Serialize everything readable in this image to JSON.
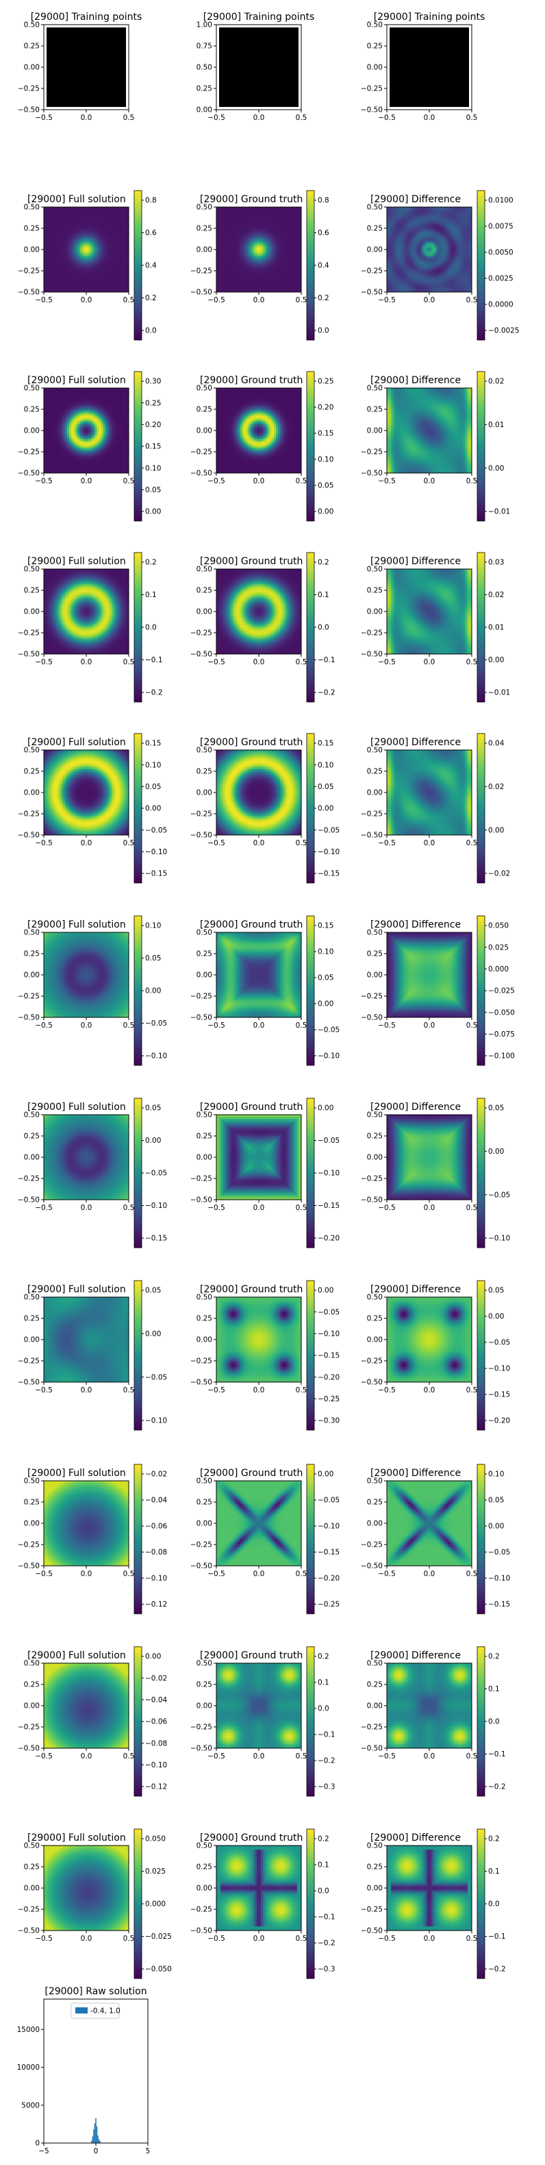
{
  "figure": {
    "panel_title_prefix": "[29000]",
    "tick_labels": {
      "x": [
        "−0.5",
        "0.0",
        "0.5"
      ],
      "y_img": [
        "0.50",
        "0.25",
        "0.00",
        "−0.25",
        "−0.50"
      ]
    }
  },
  "chart_data": {
    "type": "heatmap",
    "rows": [
      {
        "kind": "training",
        "panels": [
          {
            "title": "[29000] Training points",
            "yticks": [
              "0.50",
              "0.25",
              "0.00",
              "−0.25",
              "−0.50"
            ]
          },
          {
            "title": "[29000] Training points",
            "yticks": [
              "1.00",
              "0.75",
              "0.50",
              "0.25",
              "0.00"
            ]
          },
          {
            "title": "[29000] Training points",
            "yticks": [
              "0.50",
              "0.25",
              "0.00",
              "−0.25",
              "−0.50"
            ]
          }
        ]
      },
      {
        "panels": [
          {
            "title": "[29000] Full solution",
            "pattern": "spot",
            "cbar": [
              "0.8",
              "0.6",
              "0.4",
              "0.2",
              "0.0"
            ]
          },
          {
            "title": "[29000] Ground truth",
            "pattern": "spot",
            "cbar": [
              "0.8",
              "0.6",
              "0.4",
              "0.2",
              "0.0"
            ]
          },
          {
            "title": "[29000] Difference",
            "pattern": "rippleSmall",
            "cbar": [
              "0.0100",
              "0.0075",
              "0.0050",
              "0.0025",
              "0.0000",
              "−0.0025"
            ]
          }
        ]
      },
      {
        "panels": [
          {
            "title": "[29000] Full solution",
            "pattern": "ringSmall",
            "cbar": [
              "0.30",
              "0.25",
              "0.20",
              "0.15",
              "0.10",
              "0.05",
              "0.00"
            ]
          },
          {
            "title": "[29000] Ground truth",
            "pattern": "ringSmall",
            "cbar": [
              "0.25",
              "0.20",
              "0.15",
              "0.10",
              "0.05",
              "0.00"
            ]
          },
          {
            "title": "[29000] Difference",
            "pattern": "blob",
            "cbar": [
              "0.02",
              "0.01",
              "0.00",
              "−0.01"
            ]
          }
        ]
      },
      {
        "panels": [
          {
            "title": "[29000] Full solution",
            "pattern": "ringMid",
            "cbar": [
              "0.2",
              "0.1",
              "0.0",
              "−0.1",
              "−0.2"
            ]
          },
          {
            "title": "[29000] Ground truth",
            "pattern": "ringMid",
            "cbar": [
              "0.2",
              "0.1",
              "0.0",
              "−0.1",
              "−0.2"
            ]
          },
          {
            "title": "[29000] Difference",
            "pattern": "blob",
            "cbar": [
              "0.03",
              "0.02",
              "0.01",
              "0.00",
              "−0.01"
            ]
          }
        ]
      },
      {
        "panels": [
          {
            "title": "[29000] Full solution",
            "pattern": "ringLarge",
            "cbar": [
              "0.15",
              "0.10",
              "0.05",
              "0.00",
              "−0.05",
              "−0.10",
              "−0.15"
            ]
          },
          {
            "title": "[29000] Ground truth",
            "pattern": "ringLarge",
            "cbar": [
              "0.15",
              "0.10",
              "0.05",
              "0.00",
              "−0.05",
              "−0.10",
              "−0.15"
            ]
          },
          {
            "title": "[29000] Difference",
            "pattern": "blob",
            "cbar": [
              "0.04",
              "0.02",
              "0.00",
              "−0.02"
            ]
          }
        ]
      },
      {
        "panels": [
          {
            "title": "[29000] Full solution",
            "pattern": "ringEdge",
            "cbar": [
              "0.10",
              "0.05",
              "0.00",
              "−0.05",
              "−0.10"
            ]
          },
          {
            "title": "[29000] Ground truth",
            "pattern": "squareRing",
            "cbar": [
              "0.15",
              "0.10",
              "0.05",
              "0.00",
              "−0.05",
              "−0.10"
            ]
          },
          {
            "title": "[29000] Difference",
            "pattern": "star",
            "cbar": [
              "0.050",
              "0.025",
              "0.000",
              "−0.025",
              "−0.050",
              "−0.075",
              "−0.100"
            ]
          }
        ]
      },
      {
        "panels": [
          {
            "title": "[29000] Full solution",
            "pattern": "ringEdge",
            "cbar": [
              "0.05",
              "0.00",
              "−0.05",
              "−0.10",
              "−0.15"
            ]
          },
          {
            "title": "[29000] Ground truth",
            "pattern": "squareFrame",
            "cbar": [
              "0.00",
              "−0.05",
              "−0.10",
              "−0.15",
              "−0.20"
            ]
          },
          {
            "title": "[29000] Difference",
            "pattern": "star",
            "cbar": [
              "0.05",
              "0.00",
              "−0.05",
              "−0.10"
            ]
          }
        ]
      },
      {
        "panels": [
          {
            "title": "[29000] Full solution",
            "pattern": "diffuse",
            "cbar": [
              "0.05",
              "0.00",
              "−0.05",
              "−0.10"
            ]
          },
          {
            "title": "[29000] Ground truth",
            "pattern": "corners",
            "cbar": [
              "0.00",
              "−0.05",
              "−0.10",
              "−0.15",
              "−0.20",
              "−0.25",
              "−0.30"
            ]
          },
          {
            "title": "[29000] Difference",
            "pattern": "corners",
            "cbar": [
              "0.05",
              "0.00",
              "−0.05",
              "−0.10",
              "−0.15",
              "−0.20"
            ]
          }
        ]
      },
      {
        "panels": [
          {
            "title": "[29000] Full solution",
            "pattern": "dip",
            "cbar": [
              "−0.02",
              "−0.04",
              "−0.06",
              "−0.08",
              "−0.10",
              "−0.12"
            ]
          },
          {
            "title": "[29000] Ground truth",
            "pattern": "cross",
            "cbar": [
              "0.00",
              "−0.05",
              "−0.10",
              "−0.15",
              "−0.20",
              "−0.25"
            ]
          },
          {
            "title": "[29000] Difference",
            "pattern": "cross",
            "cbar": [
              "0.10",
              "0.05",
              "0.00",
              "−0.05",
              "−0.10",
              "−0.15"
            ]
          }
        ]
      },
      {
        "panels": [
          {
            "title": "[29000] Full solution",
            "pattern": "dip",
            "cbar": [
              "0.00",
              "−0.02",
              "−0.04",
              "−0.06",
              "−0.08",
              "−0.10",
              "−0.12"
            ]
          },
          {
            "title": "[29000] Ground truth",
            "pattern": "cornerSpots",
            "cbar": [
              "0.2",
              "0.1",
              "0.0",
              "−0.1",
              "−0.2",
              "−0.3"
            ]
          },
          {
            "title": "[29000] Difference",
            "pattern": "cornerSpots",
            "cbar": [
              "0.2",
              "0.1",
              "0.0",
              "−0.1",
              "−0.2"
            ]
          }
        ]
      },
      {
        "panels": [
          {
            "title": "[29000] Full solution",
            "pattern": "dip",
            "cbar": [
              "0.050",
              "0.025",
              "0.000",
              "−0.025",
              "−0.050"
            ]
          },
          {
            "title": "[29000] Ground truth",
            "pattern": "plus",
            "cbar": [
              "0.2",
              "0.1",
              "0.0",
              "−0.1",
              "−0.2",
              "−0.3"
            ]
          },
          {
            "title": "[29000] Difference",
            "pattern": "plus",
            "cbar": [
              "0.2",
              "0.1",
              "0.0",
              "−0.1",
              "−0.2"
            ]
          }
        ]
      }
    ],
    "histogram": {
      "title": "[29000] Raw solution",
      "legend": "-0.4, 1.0",
      "color": "#1f77b4",
      "xlim": [
        -5,
        5
      ],
      "ylim": [
        0,
        19000
      ],
      "xticks": [
        "−5",
        "0",
        "5"
      ],
      "yticks": [
        "15000",
        "10000",
        "5000",
        "0"
      ],
      "bins": [
        {
          "x": -0.4,
          "count": 300
        },
        {
          "x": -0.3,
          "count": 900
        },
        {
          "x": -0.2,
          "count": 1800
        },
        {
          "x": -0.1,
          "count": 2600
        },
        {
          "x": 0.0,
          "count": 3300
        },
        {
          "x": 0.1,
          "count": 2200
        },
        {
          "x": 0.2,
          "count": 1000
        },
        {
          "x": 0.3,
          "count": 500
        },
        {
          "x": 0.4,
          "count": 250
        }
      ]
    }
  }
}
